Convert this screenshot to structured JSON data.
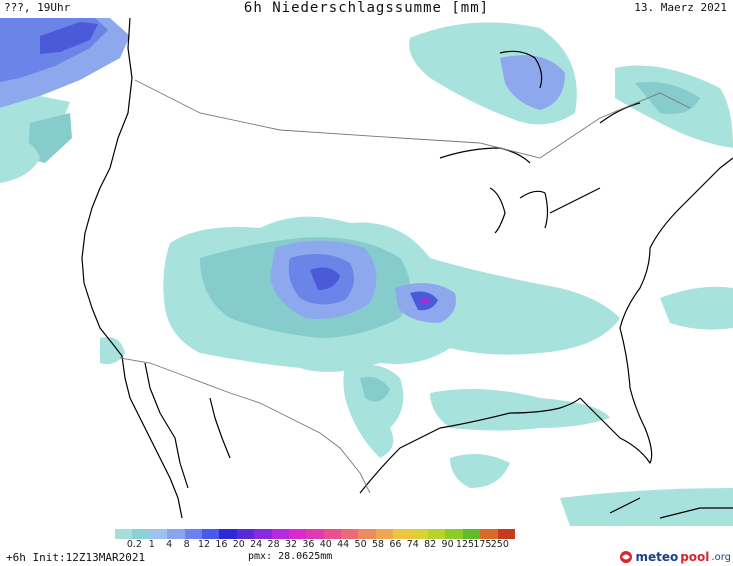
{
  "header": {
    "left": "???, 19Uhr",
    "title": "6h Niederschlagssumme [mm]",
    "date": "13. Maerz 2021"
  },
  "footer": {
    "forecast": "+6h  Init:12Z13MAR2021",
    "pmax": "pmx: 28.0625mm"
  },
  "brand": {
    "meteo": "meteo",
    "pool": "pool",
    "tld": ".org",
    "icon": "meteopool-swirl-icon"
  },
  "colorbar": {
    "labels": [
      "0.2",
      "1",
      "4",
      "8",
      "12",
      "16",
      "20",
      "24",
      "28",
      "32",
      "36",
      "40",
      "44",
      "50",
      "58",
      "66",
      "74",
      "82",
      "90",
      "125",
      "175",
      "250"
    ],
    "colors": [
      "#a6dedb",
      "#8cd0d6",
      "#9cc4ee",
      "#8aa4f0",
      "#6a82ee",
      "#4a5ae8",
      "#2a2ad8",
      "#5a2ad8",
      "#8a2ae0",
      "#b42ae0",
      "#d82ad0",
      "#e03ab0",
      "#e85090",
      "#ea6a78",
      "#ee8a60",
      "#f0a850",
      "#eec440",
      "#dcd034",
      "#b8d42c",
      "#8ccc28",
      "#62bc2a",
      "#d86a2a",
      "#c83a1e"
    ]
  },
  "map": {
    "colors": {
      "light": "#a8e2dc",
      "mid": "#86cccc",
      "blue1": "#8ea8ee",
      "blue2": "#6a84e8",
      "blue3": "#4a5ad8",
      "core": "#a12fd8"
    }
  }
}
